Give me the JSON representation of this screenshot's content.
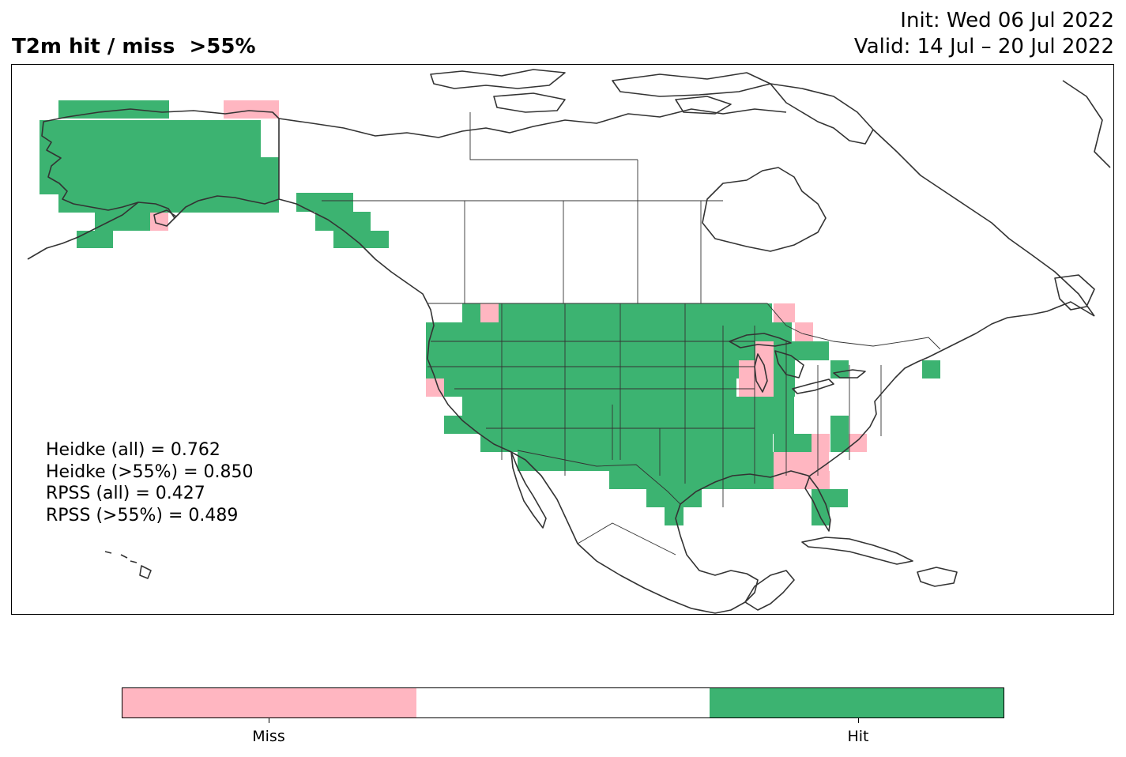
{
  "header": {
    "title": "T2m hit / miss  >55%",
    "init": "Init: Wed 06 Jul 2022",
    "valid": "Valid: 14 Jul – 20 Jul 2022"
  },
  "stats": [
    "Heidke (all) = 0.762",
    "Heidke (>55%) = 0.850",
    "RPSS (all) = 0.427",
    "RPSS (>55%) = 0.489"
  ],
  "colors": {
    "miss": "#ffb6c1",
    "neutral": "#ffffff",
    "hit": "#3cb371",
    "coast": "#333333"
  },
  "colorbar": {
    "labels": [
      "Miss",
      "Hit"
    ]
  }
}
